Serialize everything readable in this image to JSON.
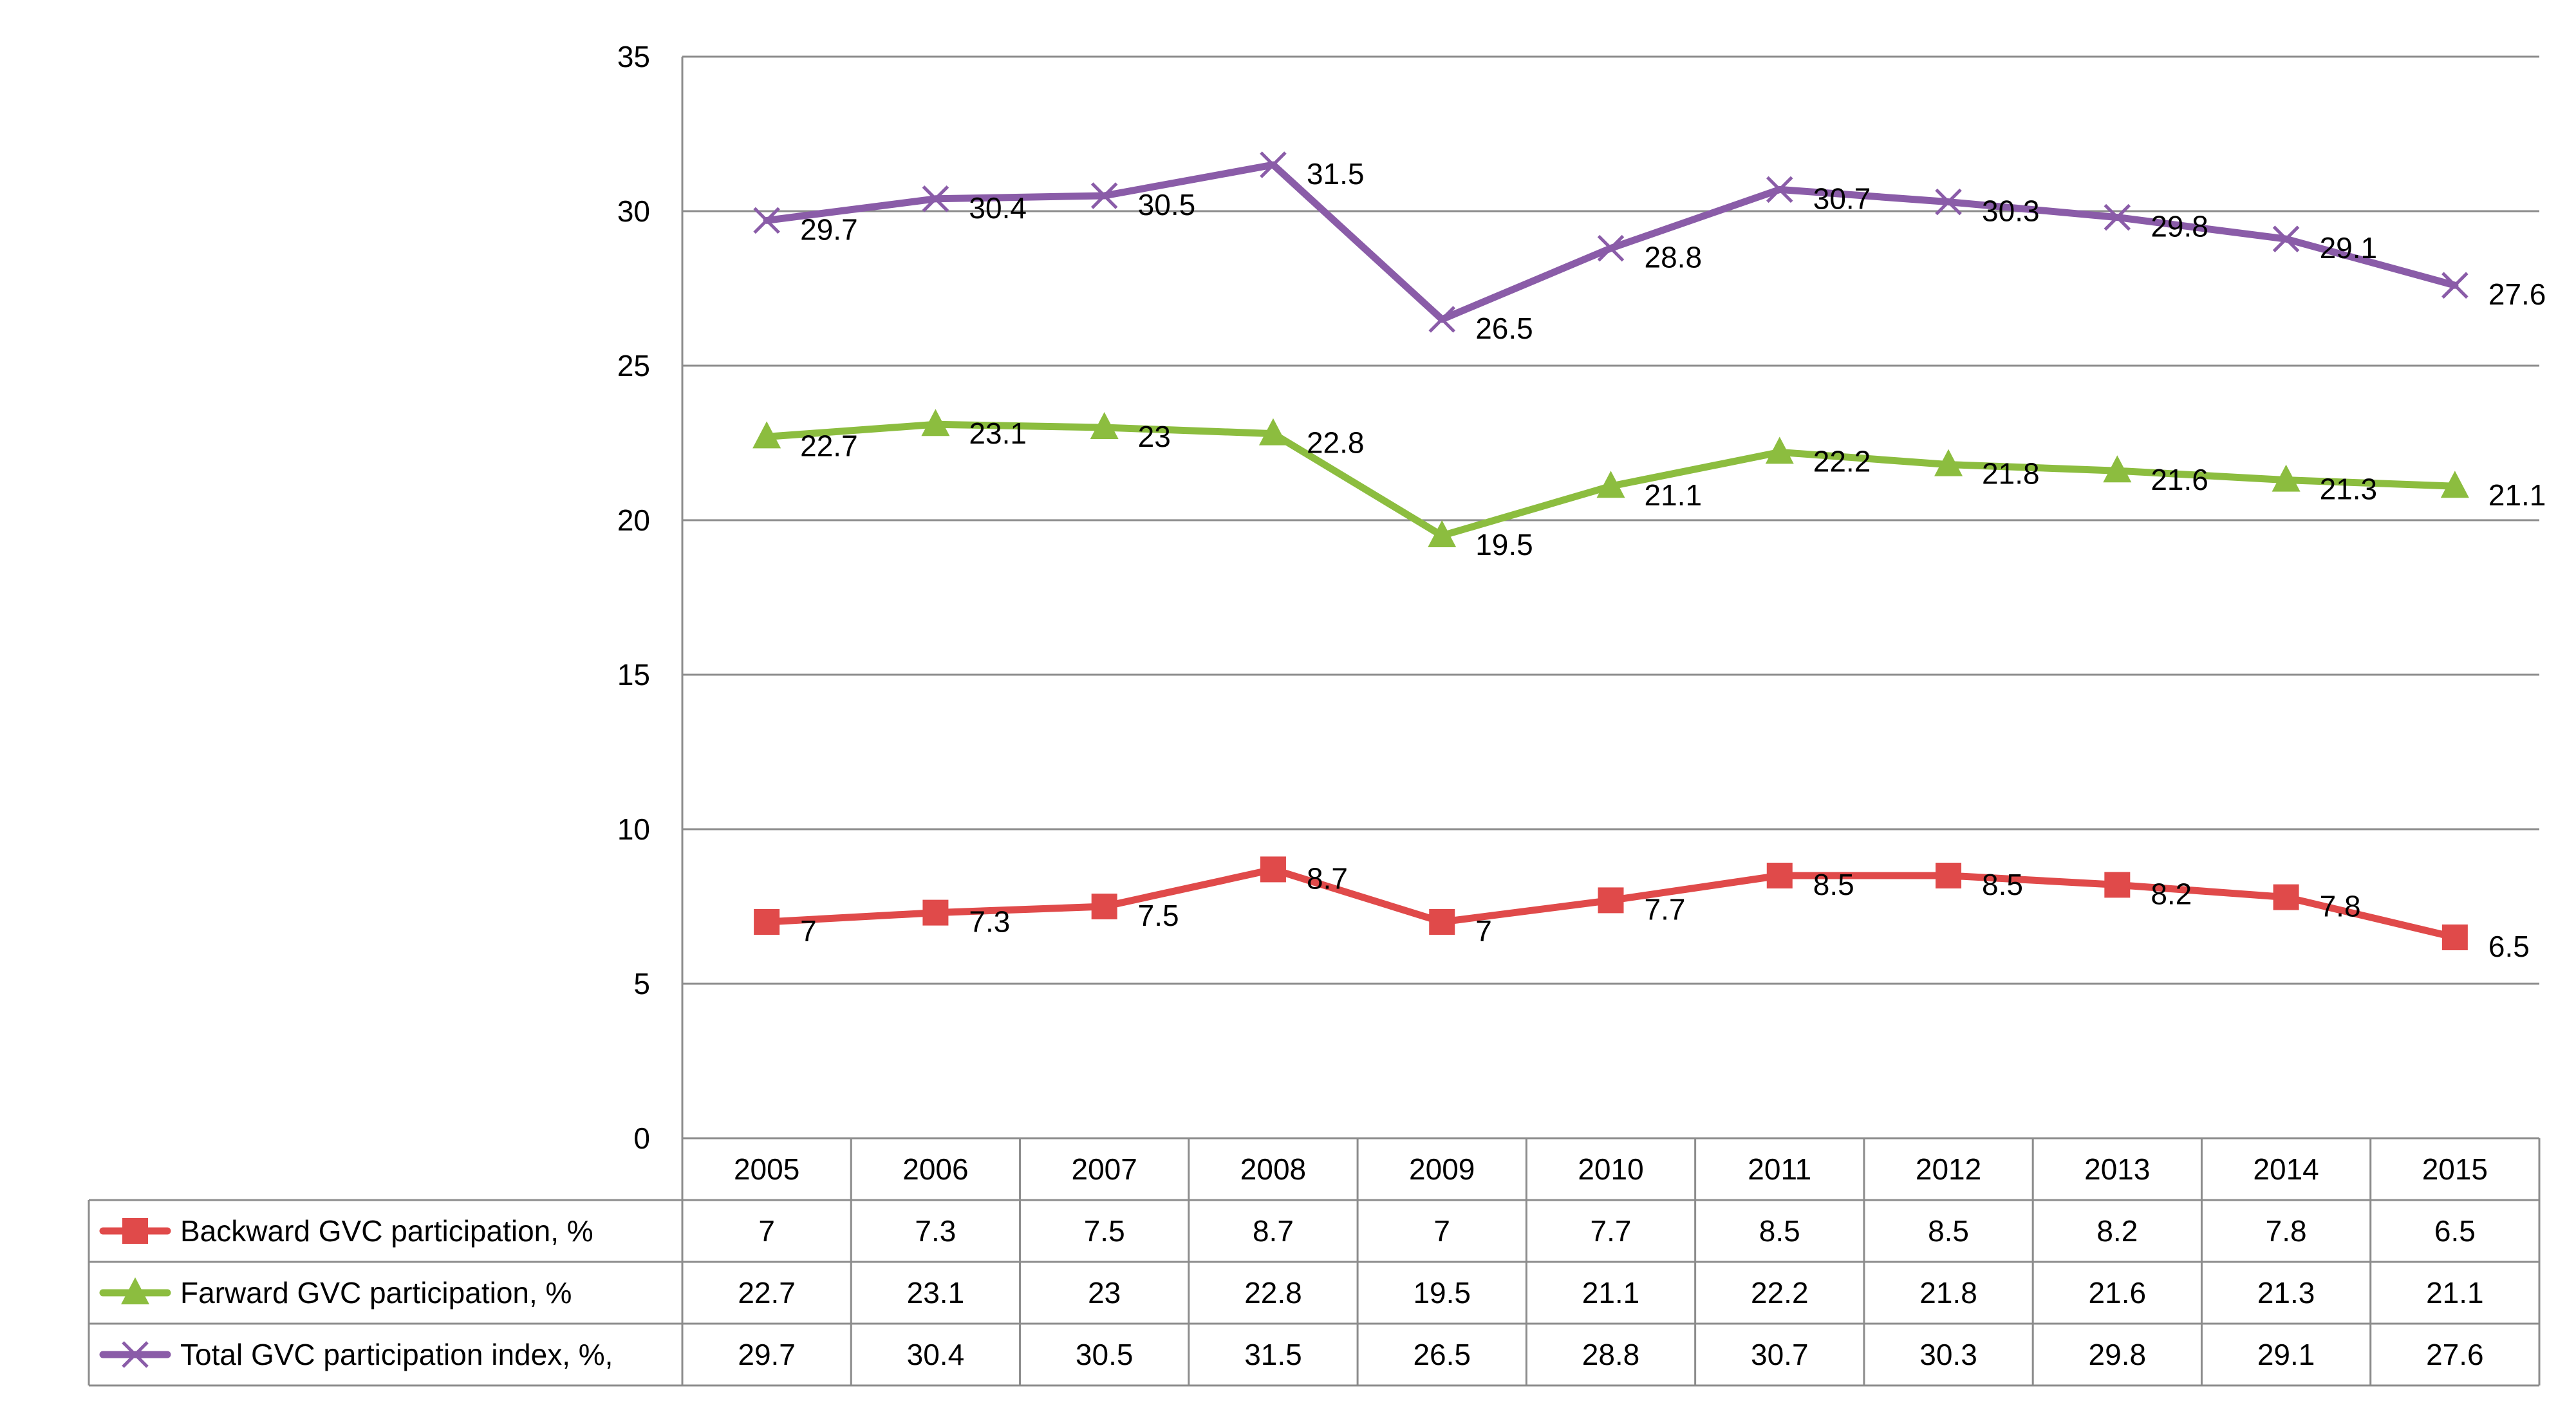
{
  "chart_data": {
    "type": "line",
    "title": "",
    "xlabel": "",
    "ylabel": "",
    "ylim": [
      0,
      35
    ],
    "ytick_step": 5,
    "yticks": [
      "0",
      "5",
      "10",
      "15",
      "20",
      "25",
      "30",
      "35"
    ],
    "grid": true,
    "legend_placement": "data-table-below",
    "categories": [
      "2005",
      "2006",
      "2007",
      "2008",
      "2009",
      "2010",
      "2011",
      "2012",
      "2013",
      "2014",
      "2015"
    ],
    "series": [
      {
        "name": "Backward GVC participation, %",
        "marker": "square",
        "color": "#e04a4a",
        "values": [
          7,
          7.3,
          7.5,
          8.7,
          7,
          7.7,
          8.5,
          8.5,
          8.2,
          7.8,
          6.5
        ],
        "labels": [
          "7",
          "7.3",
          "7.5",
          "8.7",
          "7",
          "7.7",
          "8.5",
          "8.5",
          "8.2",
          "7.8",
          "6.5"
        ]
      },
      {
        "name": "Farward GVC participation, %",
        "marker": "triangle",
        "color": "#8cbd3f",
        "values": [
          22.7,
          23.1,
          23,
          22.8,
          19.5,
          21.1,
          22.2,
          21.8,
          21.6,
          21.3,
          21.1
        ],
        "labels": [
          "22.7",
          "23.1",
          "23",
          "22.8",
          "19.5",
          "21.1",
          "22.2",
          "21.8",
          "21.6",
          "21.3",
          "21.1"
        ]
      },
      {
        "name": "Total GVC participation index, %,",
        "marker": "x",
        "color": "#8a5ca8",
        "values": [
          29.7,
          30.4,
          30.5,
          31.5,
          26.5,
          28.8,
          30.7,
          30.3,
          29.8,
          29.1,
          27.6
        ],
        "labels": [
          "29.7",
          "30.4",
          "30.5",
          "31.5",
          "26.5",
          "28.8",
          "30.7",
          "30.3",
          "29.8",
          "29.1",
          "27.6"
        ]
      }
    ]
  }
}
